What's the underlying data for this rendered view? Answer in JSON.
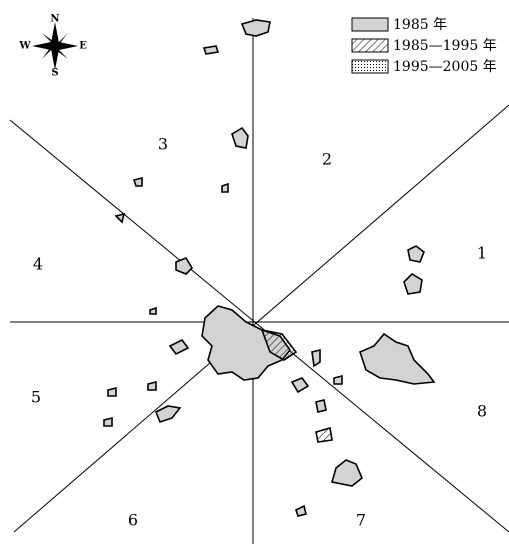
{
  "compass": {
    "north": "N",
    "south": "S",
    "east": "E",
    "west": "W"
  },
  "legend": [
    {
      "label": "1985 年"
    },
    {
      "label": "1985—1995 年"
    },
    {
      "label": "1995—2005 年"
    }
  ],
  "sectors": [
    "1",
    "2",
    "3",
    "4",
    "5",
    "6",
    "7",
    "8"
  ]
}
